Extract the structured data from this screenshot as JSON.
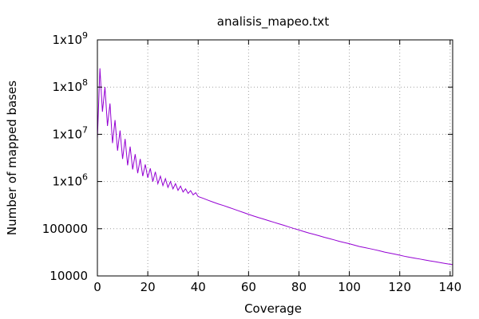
{
  "chart_data": {
    "type": "line",
    "title": "analisis_mapeo.txt",
    "xlabel": "Coverage",
    "ylabel": "Number of mapped bases",
    "xlim": [
      0,
      141
    ],
    "ylim": [
      10000,
      1000000000
    ],
    "yscale": "log",
    "grid": true,
    "x_ticks": [
      0,
      20,
      40,
      60,
      80,
      100,
      120,
      140
    ],
    "y_ticks": [
      {
        "value": 10000,
        "base": "10000",
        "exp": ""
      },
      {
        "value": 100000,
        "base": "100000",
        "exp": ""
      },
      {
        "value": 1000000,
        "base": "1x10",
        "exp": "6"
      },
      {
        "value": 10000000,
        "base": "1x10",
        "exp": "7"
      },
      {
        "value": 100000000,
        "base": "1x10",
        "exp": "8"
      },
      {
        "value": 1000000000,
        "base": "1x10",
        "exp": "9"
      }
    ],
    "series": [
      {
        "color": "#9400d3",
        "x": [
          0,
          1,
          2,
          3,
          4,
          5,
          6,
          7,
          8,
          9,
          10,
          11,
          12,
          13,
          14,
          15,
          16,
          17,
          18,
          19,
          20,
          21,
          22,
          23,
          24,
          25,
          26,
          27,
          28,
          29,
          30,
          31,
          32,
          33,
          34,
          35,
          36,
          37,
          38,
          39,
          40,
          42,
          44,
          46,
          48,
          50,
          52,
          54,
          56,
          58,
          60,
          62,
          64,
          66,
          68,
          70,
          72,
          74,
          76,
          78,
          80,
          82,
          84,
          86,
          88,
          90,
          92,
          94,
          96,
          98,
          100,
          102,
          104,
          106,
          108,
          110,
          112,
          114,
          116,
          118,
          120,
          122,
          124,
          126,
          128,
          130,
          132,
          134,
          136,
          138,
          140,
          141
        ],
        "y": [
          8000000,
          250000000,
          30000000,
          100000000,
          15000000,
          45000000,
          6500000,
          20000000,
          4500000,
          12000000,
          3000000,
          8000000,
          2200000,
          5500000,
          1800000,
          3800000,
          1500000,
          3000000,
          1300000,
          2300000,
          1200000,
          1900000,
          1000000,
          1600000,
          900000,
          1300000,
          820000,
          1150000,
          750000,
          1000000,
          700000,
          900000,
          650000,
          800000,
          600000,
          700000,
          560000,
          640000,
          520000,
          580000,
          480000,
          440000,
          400000,
          365000,
          335000,
          310000,
          285000,
          262000,
          240000,
          220000,
          202000,
          186000,
          172000,
          160000,
          148000,
          137000,
          127000,
          118000,
          109000,
          101000,
          94000,
          87000,
          81000,
          76000,
          71000,
          66000,
          62000,
          58000,
          54000,
          51000,
          48000,
          45000,
          42000,
          40000,
          38000,
          36000,
          34000,
          32000,
          30500,
          29000,
          27500,
          26000,
          24800,
          23800,
          22800,
          21800,
          20800,
          20000,
          19200,
          18400,
          17700,
          17300
        ]
      }
    ]
  }
}
